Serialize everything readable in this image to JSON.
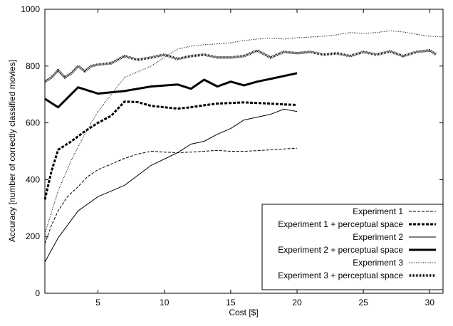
{
  "chart_data": {
    "type": "line",
    "title": "",
    "xlabel": "Cost [$]",
    "ylabel": "Accuracy [number of correctly classified movies]",
    "xlim": [
      1,
      31
    ],
    "ylim": [
      0,
      1000
    ],
    "xticks": [
      "5",
      "10",
      "15",
      "20",
      "25",
      "30"
    ],
    "yticks": [
      "0",
      "200",
      "400",
      "600",
      "800",
      "1000"
    ],
    "grid": false,
    "legend_position": "bottom-right",
    "series": [
      {
        "name": "Experiment 1",
        "style": "dashed-thin",
        "x": [
          1,
          1.5,
          2,
          2.7,
          3.5,
          4.2,
          5,
          6,
          7,
          8,
          9,
          10,
          11,
          12,
          13,
          14,
          15,
          16,
          17,
          18,
          19,
          20
        ],
        "y": [
          175,
          240,
          290,
          340,
          375,
          410,
          435,
          455,
          475,
          490,
          500,
          497,
          495,
          497,
          500,
          503,
          500,
          500,
          502,
          505,
          508,
          511
        ]
      },
      {
        "name": "Experiment 1 + perceptual space",
        "style": "dashed-thick",
        "x": [
          1,
          1.5,
          2,
          3,
          4,
          5,
          6,
          7,
          8,
          9,
          10,
          11,
          12,
          13,
          14,
          15,
          16,
          17,
          18,
          19,
          20
        ],
        "y": [
          330,
          430,
          505,
          535,
          570,
          600,
          625,
          675,
          673,
          660,
          655,
          650,
          655,
          662,
          668,
          670,
          672,
          670,
          668,
          665,
          663
        ]
      },
      {
        "name": "Experiment 2",
        "style": "solid-thin",
        "x": [
          1,
          2,
          3.5,
          5,
          7,
          9,
          11,
          12,
          13,
          14,
          15,
          16,
          17,
          18,
          19,
          20
        ],
        "y": [
          110,
          195,
          290,
          340,
          380,
          450,
          495,
          525,
          535,
          560,
          580,
          610,
          620,
          630,
          648,
          640
        ]
      },
      {
        "name": "Experiment 2 + perceptual space",
        "style": "solid-thick",
        "x": [
          1,
          2,
          3.5,
          5,
          7,
          9,
          11,
          12,
          13,
          14,
          15,
          16,
          17,
          18,
          19,
          20
        ],
        "y": [
          685,
          655,
          725,
          703,
          712,
          728,
          735,
          720,
          752,
          728,
          745,
          732,
          745,
          755,
          765,
          775
        ]
      },
      {
        "name": "Experiment 3",
        "style": "dotted-thin",
        "x": [
          1,
          2,
          3,
          4,
          5,
          6,
          7,
          8,
          9,
          10,
          11,
          12,
          13,
          14,
          15,
          16,
          17,
          18,
          19,
          20,
          21,
          22,
          23,
          24,
          25,
          26,
          27,
          28,
          29,
          30,
          31
        ],
        "y": [
          210,
          360,
          470,
          560,
          640,
          700,
          760,
          780,
          800,
          830,
          860,
          870,
          875,
          878,
          882,
          890,
          895,
          898,
          895,
          900,
          902,
          905,
          910,
          918,
          915,
          918,
          924,
          920,
          912,
          905,
          903
        ]
      },
      {
        "name": "Experiment 3 + perceptual space",
        "style": "dotted-thick",
        "x": [
          1,
          1.5,
          2,
          2.5,
          3,
          3.5,
          4,
          4.5,
          5,
          6,
          7,
          8,
          9,
          10,
          11,
          12,
          13,
          14,
          15,
          16,
          17,
          18,
          19,
          20,
          21,
          22,
          23,
          24,
          25,
          26,
          27,
          28,
          29,
          30,
          30.5
        ],
        "y": [
          745,
          760,
          785,
          760,
          775,
          800,
          782,
          800,
          805,
          810,
          835,
          822,
          830,
          840,
          825,
          835,
          840,
          830,
          830,
          835,
          855,
          830,
          850,
          845,
          850,
          840,
          845,
          835,
          850,
          840,
          852,
          835,
          850,
          855,
          840
        ]
      }
    ]
  }
}
